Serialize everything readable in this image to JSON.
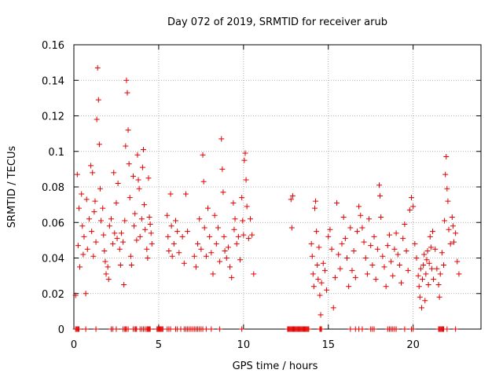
{
  "chart_data": {
    "type": "scatter",
    "title": "Day 072 of 2019, SRMTID for receiver arub",
    "xlabel": "GPS time / hours",
    "ylabel": "SRMTID / TECUs",
    "xlim": [
      0,
      24
    ],
    "ylim": [
      0,
      0.16
    ],
    "grid": true,
    "marker": "+",
    "color": "#e00000",
    "xticks": [
      0,
      5,
      10,
      15,
      20
    ],
    "xtick_labels": [
      "0",
      "5",
      "10",
      "15",
      "20"
    ],
    "yticks": [
      0,
      0.02,
      0.04,
      0.06,
      0.08,
      0.1,
      0.12,
      0.14,
      0.16
    ],
    "ytick_labels": [
      "0",
      "0.02",
      "0.04",
      "0.06",
      "0.08",
      "0.1",
      "0.12",
      "0.14",
      "0.16"
    ],
    "series": [
      {
        "name": "SRMTID",
        "points": [
          [
            0.1,
            0.019
          ],
          [
            0.2,
            0.087
          ],
          [
            0.25,
            0.047
          ],
          [
            0.3,
            0.068
          ],
          [
            0.35,
            0.035
          ],
          [
            0.45,
            0.076
          ],
          [
            0.5,
            0.058
          ],
          [
            0.55,
            0.042
          ],
          [
            0.6,
            0.052
          ],
          [
            0.7,
            0.02
          ],
          [
            0.75,
            0.073
          ],
          [
            0.8,
            0.045
          ],
          [
            0.9,
            0.062
          ],
          [
            1.0,
            0.092
          ],
          [
            1.05,
            0.055
          ],
          [
            1.1,
            0.088
          ],
          [
            1.15,
            0.041
          ],
          [
            1.2,
            0.066
          ],
          [
            1.25,
            0.072
          ],
          [
            1.3,
            0.049
          ],
          [
            1.35,
            0.118
          ],
          [
            1.4,
            0.147
          ],
          [
            1.45,
            0.129
          ],
          [
            1.5,
            0.104
          ],
          [
            1.55,
            0.079
          ],
          [
            1.6,
            0.061
          ],
          [
            1.7,
            0.068
          ],
          [
            1.75,
            0.053
          ],
          [
            1.8,
            0.044
          ],
          [
            1.85,
            0.038
          ],
          [
            1.9,
            0.031
          ],
          [
            2.0,
            0.035
          ],
          [
            2.05,
            0.028
          ],
          [
            2.1,
            0.058
          ],
          [
            2.2,
            0.062
          ],
          [
            2.3,
            0.048
          ],
          [
            2.35,
            0.088
          ],
          [
            2.4,
            0.054
          ],
          [
            2.5,
            0.071
          ],
          [
            2.55,
            0.051
          ],
          [
            2.6,
            0.082
          ],
          [
            2.7,
            0.045
          ],
          [
            2.75,
            0.036
          ],
          [
            2.8,
            0.054
          ],
          [
            2.9,
            0.049
          ],
          [
            2.95,
            0.025
          ],
          [
            3.0,
            0.061
          ],
          [
            3.05,
            0.103
          ],
          [
            3.1,
            0.14
          ],
          [
            3.15,
            0.133
          ],
          [
            3.2,
            0.112
          ],
          [
            3.25,
            0.093
          ],
          [
            3.3,
            0.074
          ],
          [
            3.35,
            0.041
          ],
          [
            3.4,
            0.036
          ],
          [
            3.5,
            0.086
          ],
          [
            3.55,
            0.058
          ],
          [
            3.6,
            0.065
          ],
          [
            3.7,
            0.05
          ],
          [
            3.75,
            0.098
          ],
          [
            3.8,
            0.084
          ],
          [
            3.85,
            0.079
          ],
          [
            3.9,
            0.052
          ],
          [
            4.0,
            0.062
          ],
          [
            4.05,
            0.091
          ],
          [
            4.1,
            0.101
          ],
          [
            4.15,
            0.07
          ],
          [
            4.2,
            0.056
          ],
          [
            4.3,
            0.045
          ],
          [
            4.35,
            0.04
          ],
          [
            4.4,
            0.085
          ],
          [
            4.45,
            0.063
          ],
          [
            4.5,
            0.059
          ],
          [
            4.55,
            0.054
          ],
          [
            4.6,
            0.048
          ],
          [
            5.5,
            0.064
          ],
          [
            5.55,
            0.052
          ],
          [
            5.6,
            0.044
          ],
          [
            5.7,
            0.076
          ],
          [
            5.75,
            0.058
          ],
          [
            5.8,
            0.041
          ],
          [
            5.9,
            0.048
          ],
          [
            6.0,
            0.061
          ],
          [
            6.1,
            0.055
          ],
          [
            6.2,
            0.043
          ],
          [
            6.4,
            0.052
          ],
          [
            6.5,
            0.037
          ],
          [
            6.6,
            0.076
          ],
          [
            6.7,
            0.055
          ],
          [
            7.1,
            0.041
          ],
          [
            7.2,
            0.035
          ],
          [
            7.3,
            0.048
          ],
          [
            7.4,
            0.062
          ],
          [
            7.5,
            0.045
          ],
          [
            7.6,
            0.098
          ],
          [
            7.65,
            0.083
          ],
          [
            7.7,
            0.057
          ],
          [
            7.8,
            0.041
          ],
          [
            7.9,
            0.068
          ],
          [
            8.0,
            0.052
          ],
          [
            8.1,
            0.043
          ],
          [
            8.2,
            0.031
          ],
          [
            8.3,
            0.064
          ],
          [
            8.4,
            0.048
          ],
          [
            8.5,
            0.057
          ],
          [
            8.6,
            0.038
          ],
          [
            8.7,
            0.107
          ],
          [
            8.75,
            0.09
          ],
          [
            8.8,
            0.077
          ],
          [
            8.85,
            0.052
          ],
          [
            8.9,
            0.044
          ],
          [
            9.0,
            0.04
          ],
          [
            9.1,
            0.046
          ],
          [
            9.2,
            0.035
          ],
          [
            9.3,
            0.029
          ],
          [
            9.4,
            0.071
          ],
          [
            9.45,
            0.056
          ],
          [
            9.5,
            0.062
          ],
          [
            9.6,
            0.048
          ],
          [
            9.7,
            0.052
          ],
          [
            9.8,
            0.039
          ],
          [
            9.9,
            0.074
          ],
          [
            9.95,
            0.061
          ],
          [
            10.0,
            0.053
          ],
          [
            10.05,
            0.095
          ],
          [
            10.1,
            0.099
          ],
          [
            10.15,
            0.084
          ],
          [
            10.2,
            0.069
          ],
          [
            10.3,
            0.051
          ],
          [
            10.4,
            0.062
          ],
          [
            10.5,
            0.053
          ],
          [
            10.6,
            0.031
          ],
          [
            12.8,
            0.073
          ],
          [
            12.85,
            0.057
          ],
          [
            12.9,
            0.075
          ],
          [
            14.0,
            0.048
          ],
          [
            14.05,
            0.041
          ],
          [
            14.1,
            0.031
          ],
          [
            14.15,
            0.024
          ],
          [
            14.2,
            0.068
          ],
          [
            14.25,
            0.072
          ],
          [
            14.3,
            0.055
          ],
          [
            14.35,
            0.036
          ],
          [
            14.4,
            0.028
          ],
          [
            14.45,
            0.046
          ],
          [
            14.5,
            0.019
          ],
          [
            14.55,
            0.008
          ],
          [
            14.6,
            0.026
          ],
          [
            14.7,
            0.037
          ],
          [
            14.8,
            0.033
          ],
          [
            14.9,
            0.022
          ],
          [
            15.0,
            0.052
          ],
          [
            15.1,
            0.056
          ],
          [
            15.2,
            0.045
          ],
          [
            15.3,
            0.012
          ],
          [
            15.4,
            0.029
          ],
          [
            15.5,
            0.071
          ],
          [
            15.6,
            0.042
          ],
          [
            15.7,
            0.034
          ],
          [
            15.8,
            0.048
          ],
          [
            15.9,
            0.063
          ],
          [
            16.0,
            0.051
          ],
          [
            16.1,
            0.04
          ],
          [
            16.2,
            0.024
          ],
          [
            16.3,
            0.057
          ],
          [
            16.4,
            0.033
          ],
          [
            16.5,
            0.044
          ],
          [
            16.6,
            0.029
          ],
          [
            16.7,
            0.055
          ],
          [
            16.8,
            0.069
          ],
          [
            16.9,
            0.064
          ],
          [
            17.0,
            0.057
          ],
          [
            17.1,
            0.049
          ],
          [
            17.2,
            0.04
          ],
          [
            17.3,
            0.031
          ],
          [
            17.4,
            0.062
          ],
          [
            17.5,
            0.047
          ],
          [
            17.6,
            0.036
          ],
          [
            17.7,
            0.052
          ],
          [
            17.8,
            0.028
          ],
          [
            17.9,
            0.045
          ],
          [
            18.0,
            0.081
          ],
          [
            18.05,
            0.075
          ],
          [
            18.1,
            0.063
          ],
          [
            18.2,
            0.041
          ],
          [
            18.3,
            0.035
          ],
          [
            18.4,
            0.024
          ],
          [
            18.5,
            0.047
          ],
          [
            18.6,
            0.053
          ],
          [
            18.7,
            0.038
          ],
          [
            18.8,
            0.03
          ],
          [
            18.9,
            0.045
          ],
          [
            19.0,
            0.054
          ],
          [
            19.1,
            0.042
          ],
          [
            19.2,
            0.036
          ],
          [
            19.3,
            0.026
          ],
          [
            19.4,
            0.051
          ],
          [
            19.5,
            0.059
          ],
          [
            19.6,
            0.044
          ],
          [
            19.7,
            0.033
          ],
          [
            19.8,
            0.067
          ],
          [
            19.9,
            0.074
          ],
          [
            20.0,
            0.069
          ],
          [
            20.1,
            0.048
          ],
          [
            20.2,
            0.04
          ],
          [
            20.3,
            0.03
          ],
          [
            20.35,
            0.024
          ],
          [
            20.4,
            0.018
          ],
          [
            20.45,
            0.034
          ],
          [
            20.5,
            0.012
          ],
          [
            20.55,
            0.028
          ],
          [
            20.6,
            0.036
          ],
          [
            20.65,
            0.042
          ],
          [
            20.7,
            0.016
          ],
          [
            20.75,
            0.031
          ],
          [
            20.8,
            0.039
          ],
          [
            20.85,
            0.044
          ],
          [
            20.9,
            0.025
          ],
          [
            20.95,
            0.037
          ],
          [
            21.0,
            0.052
          ],
          [
            21.05,
            0.046
          ],
          [
            21.1,
            0.034
          ],
          [
            21.15,
            0.055
          ],
          [
            21.2,
            0.028
          ],
          [
            21.3,
            0.045
          ],
          [
            21.4,
            0.034
          ],
          [
            21.5,
            0.025
          ],
          [
            21.55,
            0.018
          ],
          [
            21.6,
            0.031
          ],
          [
            21.7,
            0.043
          ],
          [
            21.8,
            0.036
          ],
          [
            21.85,
            0.061
          ],
          [
            21.9,
            0.087
          ],
          [
            21.95,
            0.097
          ],
          [
            22.0,
            0.079
          ],
          [
            22.05,
            0.072
          ],
          [
            22.1,
            0.056
          ],
          [
            22.2,
            0.048
          ],
          [
            22.3,
            0.063
          ],
          [
            22.35,
            0.058
          ],
          [
            22.4,
            0.049
          ],
          [
            22.5,
            0.054
          ],
          [
            22.6,
            0.038
          ],
          [
            22.7,
            0.031
          ]
        ]
      }
    ],
    "zero_markers_x": [
      0.1,
      0.15,
      0.2,
      0.25,
      0.3,
      0.7,
      1.3,
      2.2,
      2.3,
      2.5,
      2.9,
      3.0,
      3.05,
      3.1,
      3.2,
      3.5,
      3.6,
      3.65,
      3.7,
      3.9,
      4.0,
      4.1,
      4.2,
      4.3,
      4.35,
      4.4,
      4.45,
      4.5,
      4.9,
      4.95,
      5.0,
      5.05,
      5.1,
      5.15,
      5.2,
      5.25,
      5.5,
      5.6,
      5.7,
      6.0,
      6.1,
      6.3,
      6.5,
      6.6,
      6.7,
      6.8,
      6.9,
      7.0,
      7.1,
      7.2,
      7.3,
      7.4,
      7.5,
      7.6,
      7.8,
      8.1,
      8.6,
      9.9,
      12.6,
      12.65,
      12.7,
      12.75,
      12.8,
      12.85,
      12.9,
      12.95,
      13.0,
      13.05,
      13.1,
      13.15,
      13.2,
      13.25,
      13.3,
      13.35,
      13.4,
      13.45,
      13.5,
      13.55,
      13.6,
      13.65,
      13.7,
      13.75,
      13.8,
      13.85,
      14.5,
      14.55,
      14.6,
      16.3,
      16.6,
      16.8,
      17.0,
      17.5,
      17.6,
      17.7,
      18.5,
      18.6,
      18.7,
      18.8,
      18.9,
      19.0,
      19.5,
      19.9,
      20.0,
      21.5,
      21.55,
      21.6,
      21.65,
      21.7,
      21.75,
      21.8,
      22.0,
      22.5
    ]
  }
}
